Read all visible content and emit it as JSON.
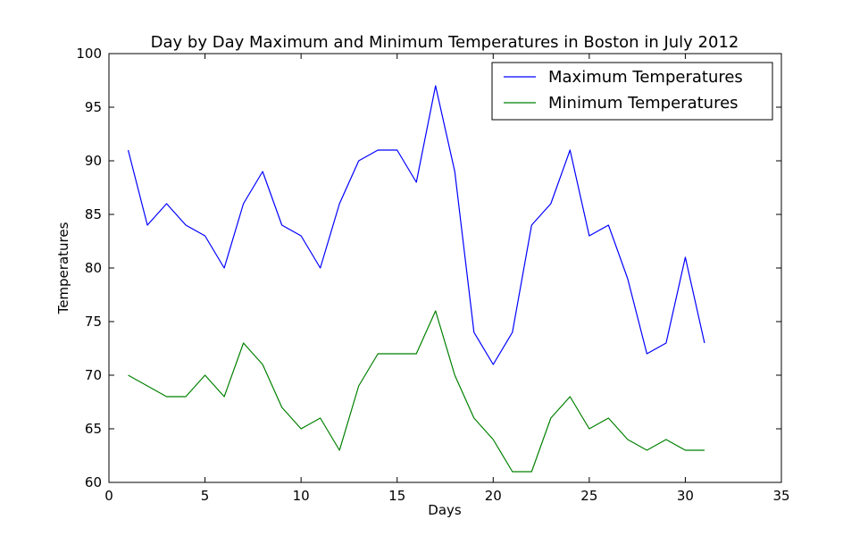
{
  "chart_data": {
    "type": "line",
    "title": "Day by Day Maximum and Minimum Temperatures in Boston in July 2012",
    "xlabel": "Days",
    "ylabel": "Temperatures",
    "xlim": [
      0,
      35
    ],
    "ylim": [
      60,
      100
    ],
    "xticks": [
      0,
      5,
      10,
      15,
      20,
      25,
      30,
      35
    ],
    "yticks": [
      60,
      65,
      70,
      75,
      80,
      85,
      90,
      95,
      100
    ],
    "grid": false,
    "legend_position": "top-right",
    "x": [
      1,
      2,
      3,
      4,
      5,
      6,
      7,
      8,
      9,
      10,
      11,
      12,
      13,
      14,
      15,
      16,
      17,
      18,
      19,
      20,
      21,
      22,
      23,
      24,
      25,
      26,
      27,
      28,
      29,
      30,
      31
    ],
    "series": [
      {
        "name": "Maximum Temperatures",
        "color": "#0000ff",
        "values": [
          91,
          84,
          86,
          84,
          83,
          80,
          86,
          89,
          84,
          83,
          80,
          86,
          90,
          91,
          91,
          88,
          97,
          89,
          74,
          71,
          74,
          84,
          86,
          91,
          83,
          84,
          79,
          72,
          73,
          81,
          73
        ]
      },
      {
        "name": "Minimum Temperatures",
        "color": "#008000",
        "values": [
          70,
          69,
          68,
          68,
          70,
          68,
          73,
          71,
          67,
          65,
          66,
          63,
          69,
          72,
          72,
          72,
          76,
          70,
          66,
          64,
          61,
          61,
          66,
          68,
          65,
          66,
          64,
          63,
          64,
          63,
          63
        ]
      }
    ]
  }
}
